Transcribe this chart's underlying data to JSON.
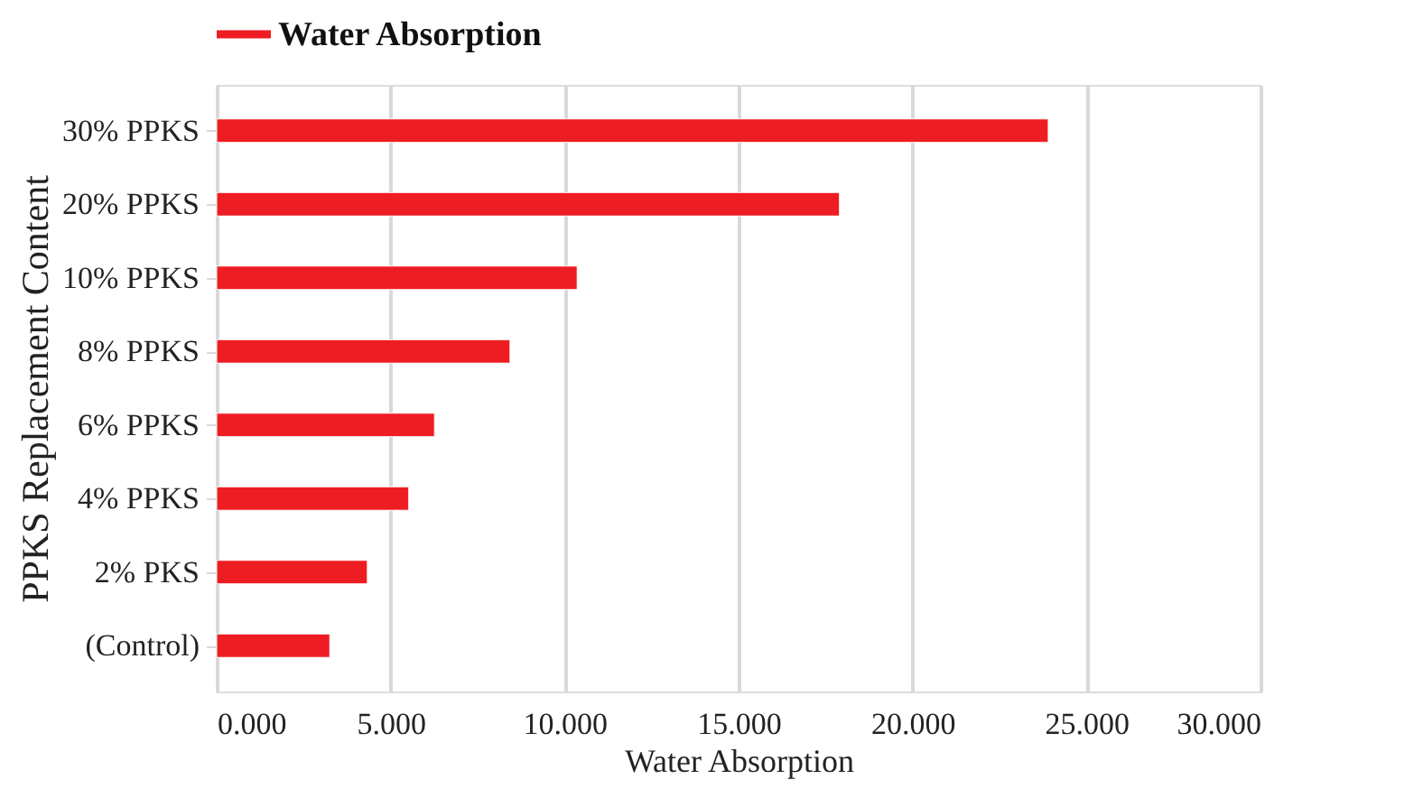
{
  "chart_data": {
    "type": "bar",
    "orientation": "horizontal",
    "categories": [
      "30% PPKS",
      "20% PPKS",
      "10% PPKS",
      "8% PPKS",
      "6% PPKS",
      "4% PPKS",
      "2% PKS",
      "(Control)"
    ],
    "series": [
      {
        "name": "Water Absorption",
        "color": "#ee1d23",
        "values": [
          23.9,
          17.9,
          10.36,
          8.43,
          6.26,
          5.52,
          4.33,
          3.25
        ]
      }
    ],
    "xlabel": "Water Absorption",
    "ylabel": "PPKS Replacement Content",
    "xlim": [
      0,
      30
    ],
    "xticks": [
      {
        "value": 0,
        "label": "0.000"
      },
      {
        "value": 5,
        "label": "5.000"
      },
      {
        "value": 10,
        "label": "10.000"
      },
      {
        "value": 15,
        "label": "15.000"
      },
      {
        "value": 20,
        "label": "20.000"
      },
      {
        "value": 25,
        "label": "25.000"
      },
      {
        "value": 30,
        "label": "30.000"
      }
    ],
    "grid": "x",
    "legend": "top"
  }
}
